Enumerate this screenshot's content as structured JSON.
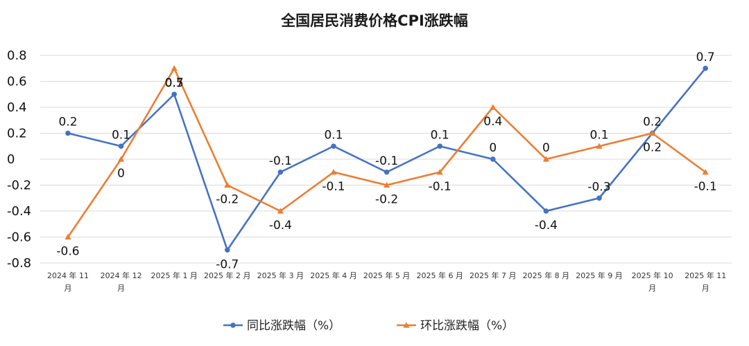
{
  "chart_data": {
    "type": "line",
    "title": "全国居民消费价格CPI涨跌幅",
    "categories": [
      [
        "2024 年 11",
        "月"
      ],
      [
        "2024 年 12",
        "月"
      ],
      [
        "2025 年 1 月"
      ],
      [
        "2025 年 2 月"
      ],
      [
        "2025 年 3 月"
      ],
      [
        "2025 年 4 月"
      ],
      [
        "2025 年 5 月"
      ],
      [
        "2025 年 6 月"
      ],
      [
        "2025 年 7 月"
      ],
      [
        "2025 年 8 月"
      ],
      [
        "2025 年 9 月"
      ],
      [
        "2025 年 10",
        "月"
      ],
      [
        "2025 年 11",
        "月"
      ]
    ],
    "ylim": [
      -0.8,
      0.8
    ],
    "yticks": [
      -0.8,
      -0.6,
      -0.4,
      -0.2,
      0,
      0.2,
      0.4,
      0.6,
      0.8
    ],
    "ytick_labels": [
      "-0.8",
      "-0.6",
      "-0.4",
      "-0.2",
      "0",
      "0.2",
      "0.4",
      "0.6",
      "0.8"
    ],
    "grid": true,
    "legend_position": "bottom",
    "series": [
      {
        "name": "同比涨跌幅（%）",
        "color": "#4472C4",
        "marker": "circle",
        "values": [
          0.2,
          0.1,
          0.5,
          -0.7,
          -0.1,
          0.1,
          -0.1,
          0.1,
          0,
          -0.4,
          -0.3,
          0.2,
          0.7
        ],
        "labels": [
          "0.2",
          "0.1",
          "0.5",
          "-0.7",
          "-0.1",
          "0.1",
          "-0.1",
          "0.1",
          "0",
          "-0.4",
          "-0.3",
          "0.2",
          "0.7"
        ],
        "label_pos": [
          "above",
          "above",
          "above",
          "below",
          "above",
          "above",
          "above",
          "above",
          "above",
          "below",
          "above",
          "above",
          "above"
        ]
      },
      {
        "name": "环比涨跌幅（%）",
        "color": "#ED7D31",
        "marker": "triangle",
        "values": [
          -0.6,
          0,
          0.7,
          -0.2,
          -0.4,
          -0.1,
          -0.2,
          -0.1,
          0.4,
          0,
          0.1,
          0.2,
          -0.1
        ],
        "labels": [
          "-0.6",
          "0",
          "0.7",
          "-0.2",
          "-0.4",
          "-0.1",
          "-0.2",
          "-0.1",
          "0.4",
          "0",
          "0.1",
          "0.2",
          "-0.1"
        ],
        "label_pos": [
          "below",
          "below",
          "below",
          "below",
          "below",
          "below",
          "below",
          "below",
          "below",
          "above",
          "above",
          "below",
          "below"
        ]
      }
    ]
  }
}
